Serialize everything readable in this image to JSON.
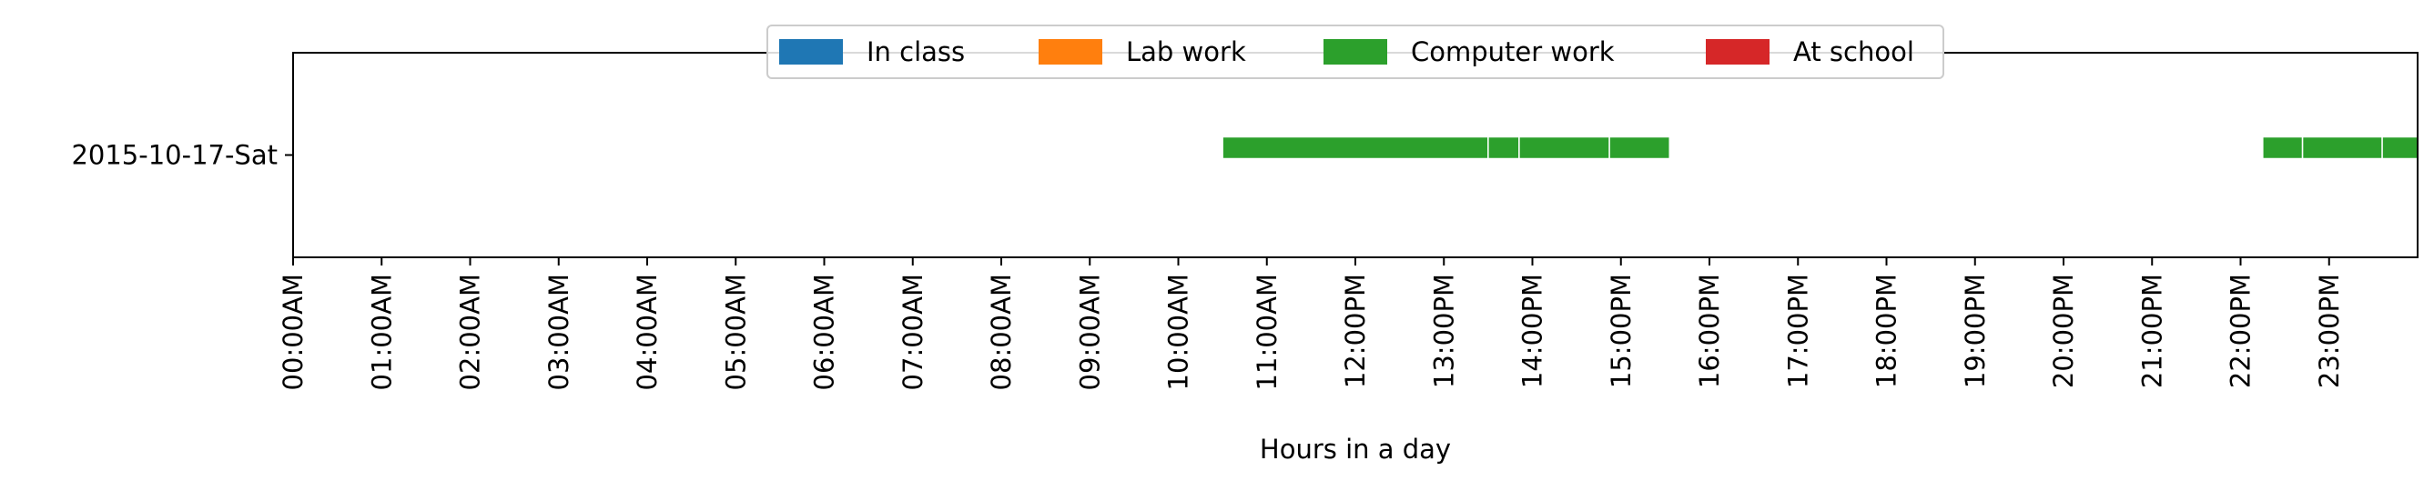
{
  "chart_data": {
    "type": "timeline",
    "xlabel": "Hours in a day",
    "xlim": [
      0,
      24
    ],
    "x_ticks": [
      "00:00AM",
      "01:00AM",
      "02:00AM",
      "03:00AM",
      "04:00AM",
      "05:00AM",
      "06:00AM",
      "07:00AM",
      "08:00AM",
      "09:00AM",
      "10:00AM",
      "11:00AM",
      "12:00PM",
      "13:00PM",
      "14:00PM",
      "15:00PM",
      "16:00PM",
      "17:00PM",
      "18:00PM",
      "19:00PM",
      "20:00PM",
      "21:00PM",
      "22:00PM",
      "23:00PM"
    ],
    "rows": [
      "2015-10-17-Sat"
    ],
    "legend_placement": "top-center",
    "grid": false,
    "series": [
      {
        "name": "In class",
        "color": "#1f77b4",
        "intervals": []
      },
      {
        "name": "Lab work",
        "color": "#ff7f0e",
        "intervals": []
      },
      {
        "name": "Computer work",
        "color": "#2ca02c",
        "intervals": [
          {
            "row": "2015-10-17-Sat",
            "start": 10.5,
            "end": 13.5
          },
          {
            "row": "2015-10-17-Sat",
            "start": 13.5,
            "end": 13.85
          },
          {
            "row": "2015-10-17-Sat",
            "start": 13.85,
            "end": 14.87
          },
          {
            "row": "2015-10-17-Sat",
            "start": 14.87,
            "end": 15.55
          },
          {
            "row": "2015-10-17-Sat",
            "start": 22.25,
            "end": 22.7
          },
          {
            "row": "2015-10-17-Sat",
            "start": 22.7,
            "end": 23.6
          },
          {
            "row": "2015-10-17-Sat",
            "start": 23.6,
            "end": 24.0
          }
        ]
      },
      {
        "name": "At school",
        "color": "#d62728",
        "intervals": []
      }
    ]
  }
}
